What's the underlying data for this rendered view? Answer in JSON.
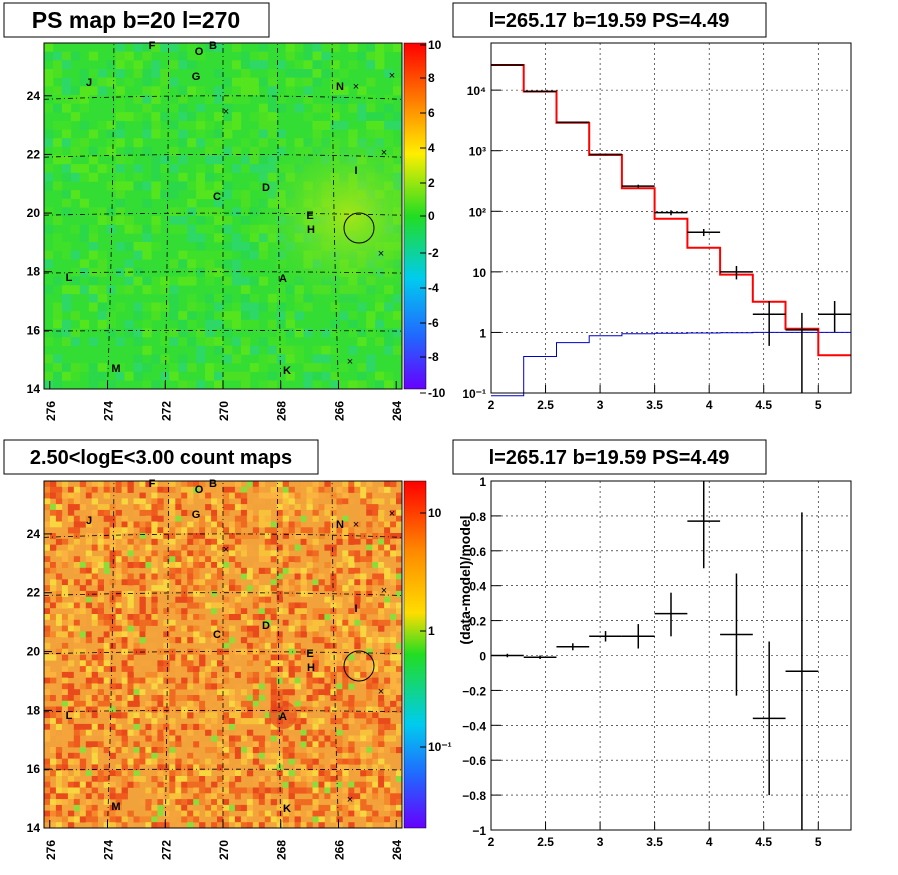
{
  "colors": {
    "map_green": "#33dd33",
    "count_orange": "#f2a23a",
    "model_red": "#ff0000",
    "bg_blue": "#0000cc"
  },
  "panels": {
    "tl_title": "PS map b=20 l=270",
    "tr_title": "l=265.17 b=19.59 PS=4.49",
    "bl_title": "2.50<logE<3.00 count maps",
    "br_title": "l=265.17 b=19.59 PS=4.49"
  },
  "maps": {
    "x_ticks": [
      "276",
      "274",
      "272",
      "270",
      "268",
      "266",
      "264"
    ],
    "y_ticks": [
      "14",
      "16",
      "18",
      "20",
      "22",
      "24"
    ],
    "ps_colorbar_ticks": [
      "10",
      "8",
      "6",
      "4",
      "2",
      "0",
      "-2",
      "-4",
      "-6",
      "-8",
      "-10"
    ],
    "count_colorbar_ticks": [
      "10",
      "1",
      "10⁻¹"
    ],
    "sources": [
      {
        "label": "F"
      },
      {
        "label": "O"
      },
      {
        "label": "B"
      },
      {
        "label": "G"
      },
      {
        "label": "J"
      },
      {
        "label": "N"
      },
      {
        "label": "I"
      },
      {
        "label": "D"
      },
      {
        "label": "C"
      },
      {
        "label": "E"
      },
      {
        "label": "H"
      },
      {
        "label": "L"
      },
      {
        "label": "A"
      },
      {
        "label": "M"
      },
      {
        "label": "K"
      }
    ]
  },
  "chart_data": [
    {
      "type": "line",
      "title": "l=265.17 b=19.59 PS=4.49",
      "xlabel": "",
      "ylabel": "",
      "xlim": [
        2,
        5.3
      ],
      "ylim": [
        0.1,
        60000
      ],
      "yscale": "log",
      "grid": true,
      "x_ticks": [
        "2",
        "2.5",
        "3",
        "3.5",
        "4",
        "4.5",
        "5"
      ],
      "y_ticks": [
        "10⁻¹",
        "1",
        "10",
        "10²",
        "10³",
        "10⁴"
      ],
      "bin_edges": [
        2.0,
        2.3,
        2.6,
        2.9,
        3.2,
        3.5,
        3.8,
        4.1,
        4.4,
        4.7,
        5.0,
        5.3
      ],
      "series": [
        {
          "values": [
            26000,
            9500,
            2900,
            850,
            240,
            75,
            25,
            9,
            3.2,
            1.15,
            0.42
          ]
        },
        {
          "values": [
            0.09,
            0.4,
            0.68,
            0.88,
            0.95,
            0.97,
            0.98,
            0.99,
            1.0,
            1.0,
            1.0
          ]
        }
      ],
      "points": [
        {
          "x": 2.15,
          "y": 26000,
          "ylo": 25800,
          "yhi": 26200
        },
        {
          "x": 2.45,
          "y": 9500,
          "ylo": 9400,
          "yhi": 9600
        },
        {
          "x": 2.75,
          "y": 2950,
          "ylo": 2900,
          "yhi": 3000
        },
        {
          "x": 3.05,
          "y": 870,
          "ylo": 840,
          "yhi": 900
        },
        {
          "x": 3.35,
          "y": 260,
          "ylo": 245,
          "yhi": 275
        },
        {
          "x": 3.65,
          "y": 95,
          "ylo": 86,
          "yhi": 104
        },
        {
          "x": 3.95,
          "y": 45,
          "ylo": 39,
          "yhi": 51
        },
        {
          "x": 4.25,
          "y": 10,
          "ylo": 7.5,
          "yhi": 12.5
        },
        {
          "x": 4.55,
          "y": 2,
          "ylo": 0.6,
          "yhi": 3.3
        },
        {
          "x": 4.85,
          "y": 1.1,
          "ylo": 0.08,
          "yhi": 2.1
        },
        {
          "x": 5.15,
          "y": 2,
          "ylo": 1.0,
          "yhi": 3.3
        }
      ]
    },
    {
      "type": "scatter",
      "title": "l=265.17 b=19.59 PS=4.49",
      "xlabel": "",
      "ylabel": "(data-model)/model",
      "xlim": [
        2,
        5.3
      ],
      "ylim": [
        -1,
        1
      ],
      "grid": true,
      "x_ticks": [
        "2",
        "2.5",
        "3",
        "3.5",
        "4",
        "4.5",
        "5"
      ],
      "y_ticks": [
        "−1",
        "−0.8",
        "−0.6",
        "−0.4",
        "−0.2",
        "0",
        "0.2",
        "0.4",
        "0.6",
        "0.8",
        "1"
      ],
      "points": [
        {
          "x": 2.15,
          "y": 0.0,
          "ylo": -0.01,
          "yhi": 0.01
        },
        {
          "x": 2.45,
          "y": -0.01,
          "ylo": -0.02,
          "yhi": 0.0
        },
        {
          "x": 2.75,
          "y": 0.05,
          "ylo": 0.03,
          "yhi": 0.07
        },
        {
          "x": 3.05,
          "y": 0.11,
          "ylo": 0.08,
          "yhi": 0.14
        },
        {
          "x": 3.35,
          "y": 0.11,
          "ylo": 0.04,
          "yhi": 0.18
        },
        {
          "x": 3.65,
          "y": 0.24,
          "ylo": 0.11,
          "yhi": 0.36
        },
        {
          "x": 3.95,
          "y": 0.77,
          "ylo": 0.5,
          "yhi": 1.0
        },
        {
          "x": 4.25,
          "y": 0.12,
          "ylo": -0.23,
          "yhi": 0.47
        },
        {
          "x": 4.55,
          "y": -0.36,
          "ylo": -0.8,
          "yhi": 0.08
        },
        {
          "x": 4.85,
          "y": -0.09,
          "ylo": -1.0,
          "yhi": 0.82
        }
      ]
    }
  ]
}
